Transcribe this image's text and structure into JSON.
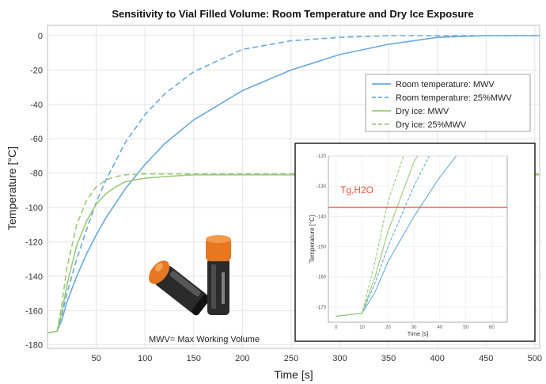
{
  "chart_data": {
    "type": "line",
    "title": "Sensitivity to Vial Filled Volume: Room Temperature and Dry Ice Exposure",
    "xlabel": "Time [s]",
    "ylabel": "Temperature   [°C]",
    "xlim": [
      0,
      505
    ],
    "ylim": [
      -182,
      6
    ],
    "x_ticks": [
      50,
      100,
      150,
      200,
      250,
      300,
      350,
      400,
      450,
      500
    ],
    "y_ticks": [
      0,
      -20,
      -40,
      -60,
      -80,
      -100,
      -120,
      -140,
      -160,
      -180
    ],
    "grid": true,
    "legend_position": "right",
    "series": [
      {
        "name": "Room temperature: MWV",
        "color": "#6aa9dc",
        "dash": "solid",
        "x": [
          0,
          10,
          15,
          20,
          30,
          40,
          50,
          60,
          80,
          100,
          120,
          150,
          200,
          250,
          300,
          350,
          400,
          450,
          505
        ],
        "y": [
          -173,
          -172,
          -165,
          -155,
          -140,
          -127,
          -116,
          -106,
          -89,
          -75,
          -63,
          -49,
          -32,
          -20,
          -11,
          -5,
          -1,
          0,
          0
        ]
      },
      {
        "name": "Room temperature: 25%MWV",
        "color": "#6aa9dc",
        "dash": "dashed",
        "x": [
          0,
          10,
          15,
          20,
          30,
          40,
          50,
          60,
          80,
          100,
          120,
          150,
          200,
          250,
          300,
          350,
          400,
          450,
          505
        ],
        "y": [
          -173,
          -172,
          -162,
          -150,
          -130,
          -113,
          -97,
          -84,
          -62,
          -46,
          -34,
          -21,
          -8,
          -3,
          -1,
          0,
          0,
          0,
          0
        ]
      },
      {
        "name": "Dry ice: MWV",
        "color": "#9dc97a",
        "dash": "solid",
        "x": [
          0,
          10,
          15,
          20,
          30,
          40,
          50,
          60,
          70,
          80,
          100,
          120,
          150,
          200,
          300,
          400,
          505
        ],
        "y": [
          -173,
          -172,
          -160,
          -145,
          -122,
          -108,
          -98,
          -92,
          -88,
          -85,
          -83,
          -82,
          -81,
          -81,
          -81,
          -81,
          -81
        ]
      },
      {
        "name": "Dry ice: 25%MWV",
        "color": "#9dc97a",
        "dash": "dashed",
        "x": [
          0,
          10,
          15,
          20,
          30,
          40,
          50,
          60,
          70,
          80,
          100,
          120,
          150,
          200,
          300,
          400,
          505
        ],
        "y": [
          -173,
          -172,
          -155,
          -135,
          -110,
          -96,
          -88,
          -84,
          -82,
          -81,
          -80.5,
          -80.5,
          -80.5,
          -80.5,
          -80.5,
          -80.5,
          -80.5
        ]
      }
    ],
    "inset": {
      "xlabel": "Time [s]",
      "ylabel": "Temperature  [°C]",
      "x_ticks": [
        0,
        10,
        20,
        30,
        40,
        50,
        60
      ],
      "y_ticks": [
        -120,
        -130,
        -140,
        -150,
        -160,
        -170
      ],
      "xlim": [
        -3,
        66
      ],
      "ylim": [
        -175,
        -120
      ],
      "annotation": "Tg,H2O",
      "annotation_color": "#e8553a",
      "reference_line_y": -137
    },
    "caption": "MWV= Max Working Volume"
  }
}
